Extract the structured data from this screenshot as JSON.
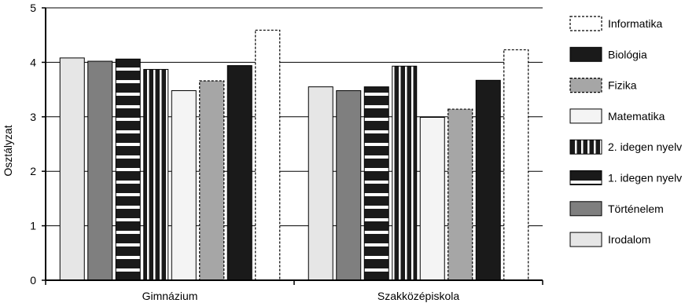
{
  "chart_data": {
    "type": "bar",
    "ylabel": "Osztályzat",
    "ylim": [
      0,
      5
    ],
    "yticks": [
      0,
      1,
      2,
      3,
      4,
      5
    ],
    "grid": "horizontal",
    "legend_position": "right",
    "categories": [
      "Gimnázium",
      "Szakközépiskola"
    ],
    "series": [
      {
        "name": "Irodalom",
        "values": [
          4.08,
          3.55
        ],
        "fill": "#e6e6e6",
        "pattern": "solid"
      },
      {
        "name": "Történelem",
        "values": [
          4.02,
          3.48
        ],
        "fill": "#7f7f7f",
        "pattern": "solid"
      },
      {
        "name": "1. idegen nyelv",
        "values": [
          4.06,
          3.55
        ],
        "fill": "#1a1a1a",
        "pattern": "horizontal-stripes"
      },
      {
        "name": "2. idegen nyelv",
        "values": [
          3.87,
          3.93
        ],
        "fill": "#1a1a1a",
        "pattern": "vertical-stripes"
      },
      {
        "name": "Matematika",
        "values": [
          3.48,
          2.99
        ],
        "fill": "#f4f4f4",
        "pattern": "solid"
      },
      {
        "name": "Fizika",
        "values": [
          3.66,
          3.14
        ],
        "fill": "#a6a6a6",
        "pattern": "dashed-outline"
      },
      {
        "name": "Biológia",
        "values": [
          3.94,
          3.67
        ],
        "fill": "#1a1a1a",
        "pattern": "solid"
      },
      {
        "name": "Informatika",
        "values": [
          4.59,
          4.23
        ],
        "fill": "#ffffff",
        "pattern": "dashed-outline"
      }
    ],
    "legend_order": [
      "Informatika",
      "Biológia",
      "Fizika",
      "Matematika",
      "2. idegen nyelv",
      "1. idegen nyelv",
      "Történelem",
      "Irodalom"
    ]
  }
}
